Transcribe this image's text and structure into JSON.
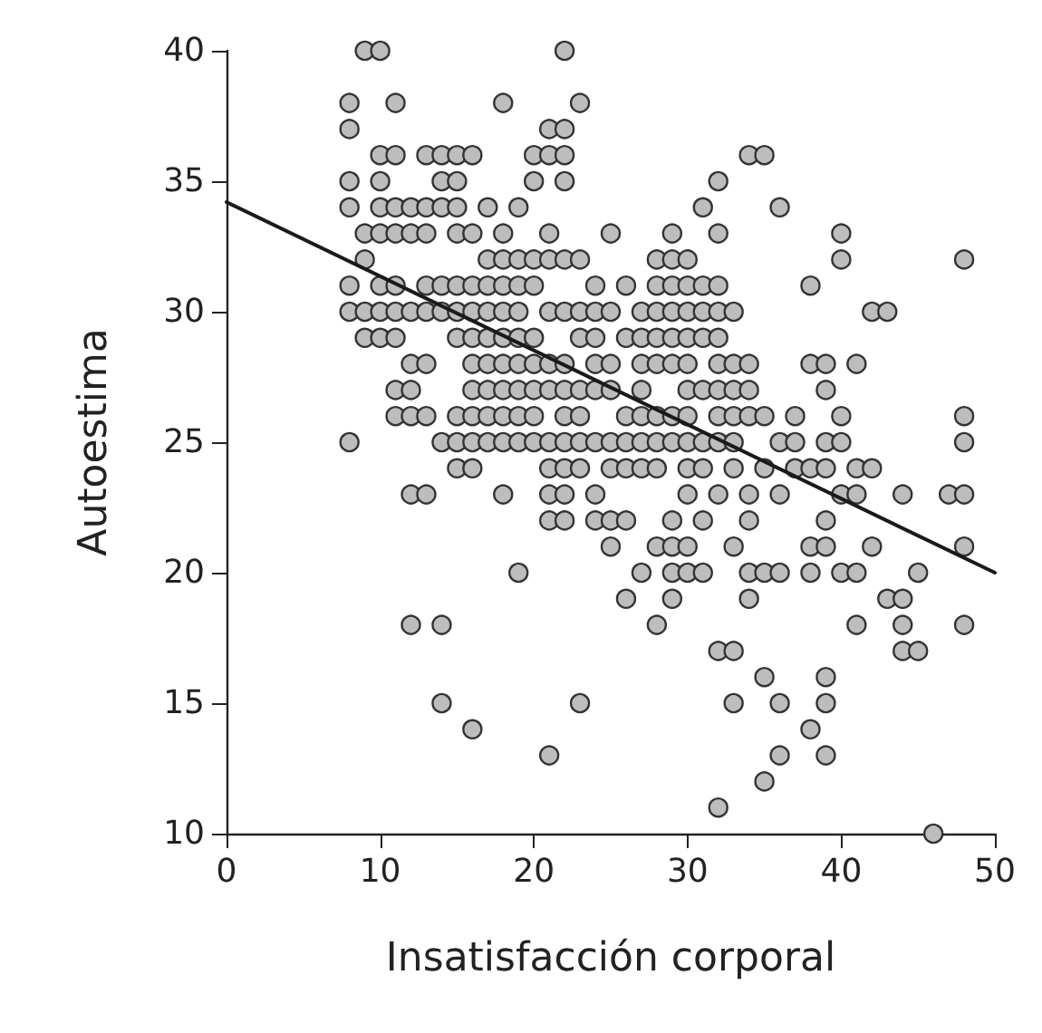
{
  "chart_data": {
    "type": "scatter",
    "xlabel": "Insatisfacción corporal",
    "ylabel": "Autoestima",
    "xlim": [
      0,
      50
    ],
    "ylim": [
      10,
      40
    ],
    "xticks": [
      0,
      10,
      20,
      30,
      40,
      50
    ],
    "yticks": [
      10,
      15,
      20,
      25,
      30,
      35,
      40
    ],
    "grid": false,
    "marker": "circle",
    "series": [
      {
        "color": "#bdbdbd",
        "x": [
          8,
          8,
          8,
          8,
          8,
          8,
          8,
          9,
          9,
          9,
          9,
          9,
          10,
          10,
          10,
          10,
          10,
          10,
          10,
          10,
          11,
          11,
          11,
          11,
          11,
          11,
          11,
          11,
          11,
          12,
          12,
          12,
          12,
          12,
          12,
          12,
          12,
          13,
          13,
          13,
          13,
          13,
          13,
          13,
          13,
          14,
          14,
          14,
          14,
          14,
          14,
          14,
          14,
          15,
          15,
          15,
          15,
          15,
          15,
          15,
          15,
          15,
          15,
          16,
          16,
          16,
          16,
          16,
          16,
          16,
          16,
          16,
          16,
          16,
          17,
          17,
          17,
          17,
          17,
          17,
          17,
          17,
          17,
          18,
          18,
          18,
          18,
          18,
          18,
          18,
          18,
          18,
          18,
          18,
          19,
          19,
          19,
          19,
          19,
          19,
          19,
          19,
          19,
          19,
          20,
          20,
          20,
          20,
          20,
          20,
          20,
          20,
          20,
          21,
          21,
          21,
          21,
          21,
          21,
          21,
          21,
          21,
          21,
          21,
          21,
          22,
          22,
          22,
          22,
          22,
          22,
          22,
          22,
          22,
          22,
          22,
          22,
          22,
          23,
          23,
          23,
          23,
          23,
          23,
          23,
          23,
          23,
          24,
          24,
          24,
          24,
          24,
          24,
          24,
          24,
          25,
          25,
          25,
          25,
          25,
          25,
          25,
          25,
          26,
          26,
          26,
          26,
          26,
          26,
          26,
          27,
          27,
          27,
          27,
          27,
          27,
          27,
          27,
          28,
          28,
          28,
          28,
          28,
          28,
          28,
          28,
          28,
          28,
          29,
          29,
          29,
          29,
          29,
          29,
          29,
          29,
          29,
          29,
          29,
          29,
          30,
          30,
          30,
          30,
          30,
          30,
          30,
          30,
          30,
          30,
          30,
          30,
          31,
          31,
          31,
          31,
          31,
          31,
          31,
          31,
          31,
          32,
          32,
          32,
          32,
          32,
          32,
          32,
          32,
          32,
          32,
          32,
          32,
          33,
          33,
          33,
          33,
          33,
          33,
          33,
          33,
          33,
          34,
          34,
          34,
          34,
          34,
          34,
          34,
          34,
          35,
          35,
          35,
          35,
          35,
          35,
          36,
          36,
          36,
          36,
          36,
          36,
          37,
          37,
          37,
          38,
          38,
          38,
          38,
          38,
          38,
          39,
          39,
          39,
          39,
          39,
          39,
          39,
          39,
          39,
          40,
          40,
          40,
          40,
          40,
          40,
          41,
          41,
          41,
          41,
          41,
          42,
          42,
          42,
          43,
          43,
          44,
          44,
          44,
          44,
          45,
          45,
          46,
          47,
          48,
          48,
          48,
          48,
          48,
          48
        ],
        "values": [
          38,
          37,
          35,
          34,
          31,
          30,
          25,
          40,
          33,
          32,
          30,
          29,
          40,
          36,
          35,
          34,
          33,
          31,
          30,
          29,
          38,
          36,
          34,
          33,
          31,
          30,
          29,
          27,
          26,
          34,
          33,
          30,
          28,
          27,
          26,
          23,
          18,
          36,
          34,
          33,
          31,
          30,
          28,
          26,
          23,
          36,
          35,
          34,
          31,
          30,
          25,
          18,
          15,
          36,
          35,
          34,
          33,
          31,
          30,
          29,
          26,
          25,
          24,
          36,
          33,
          31,
          30,
          29,
          28,
          27,
          26,
          25,
          24,
          14,
          34,
          32,
          31,
          30,
          29,
          28,
          27,
          26,
          25,
          38,
          33,
          32,
          31,
          30,
          29,
          28,
          27,
          26,
          25,
          23,
          34,
          32,
          31,
          30,
          29,
          28,
          27,
          26,
          25,
          20,
          36,
          35,
          32,
          31,
          29,
          28,
          27,
          26,
          25,
          37,
          36,
          33,
          32,
          30,
          28,
          27,
          25,
          24,
          23,
          22,
          13,
          40,
          37,
          36,
          35,
          32,
          30,
          28,
          27,
          26,
          25,
          24,
          23,
          22,
          38,
          32,
          30,
          29,
          27,
          26,
          25,
          24,
          15,
          31,
          30,
          29,
          28,
          27,
          25,
          23,
          22,
          33,
          30,
          28,
          27,
          25,
          24,
          22,
          21,
          31,
          29,
          26,
          25,
          24,
          22,
          19,
          30,
          29,
          28,
          27,
          26,
          25,
          24,
          20,
          32,
          31,
          30,
          29,
          28,
          26,
          25,
          24,
          21,
          18,
          33,
          32,
          31,
          30,
          29,
          28,
          26,
          25,
          22,
          21,
          20,
          19,
          32,
          31,
          30,
          29,
          28,
          27,
          26,
          25,
          24,
          23,
          21,
          20,
          34,
          31,
          30,
          29,
          27,
          25,
          24,
          22,
          20,
          35,
          33,
          31,
          30,
          29,
          28,
          27,
          26,
          25,
          23,
          17,
          11,
          30,
          28,
          27,
          26,
          25,
          24,
          21,
          17,
          15,
          36,
          28,
          27,
          26,
          23,
          22,
          20,
          19,
          36,
          26,
          24,
          20,
          16,
          12,
          34,
          25,
          23,
          20,
          15,
          13,
          26,
          25,
          24,
          31,
          28,
          24,
          21,
          20,
          14,
          28,
          27,
          25,
          24,
          22,
          21,
          16,
          15,
          13,
          33,
          32,
          26,
          25,
          23,
          20,
          28,
          24,
          23,
          20,
          18,
          30,
          24,
          21,
          30,
          19,
          23,
          19,
          18,
          17,
          20,
          17,
          10,
          23,
          32,
          26,
          25,
          23,
          21,
          18
        ]
      },
      {
        "type": "line",
        "color": "#1a1a1a",
        "marker": "none",
        "line_style": "solid",
        "x": [
          0,
          50
        ],
        "values": [
          34.2,
          20
        ]
      }
    ]
  }
}
